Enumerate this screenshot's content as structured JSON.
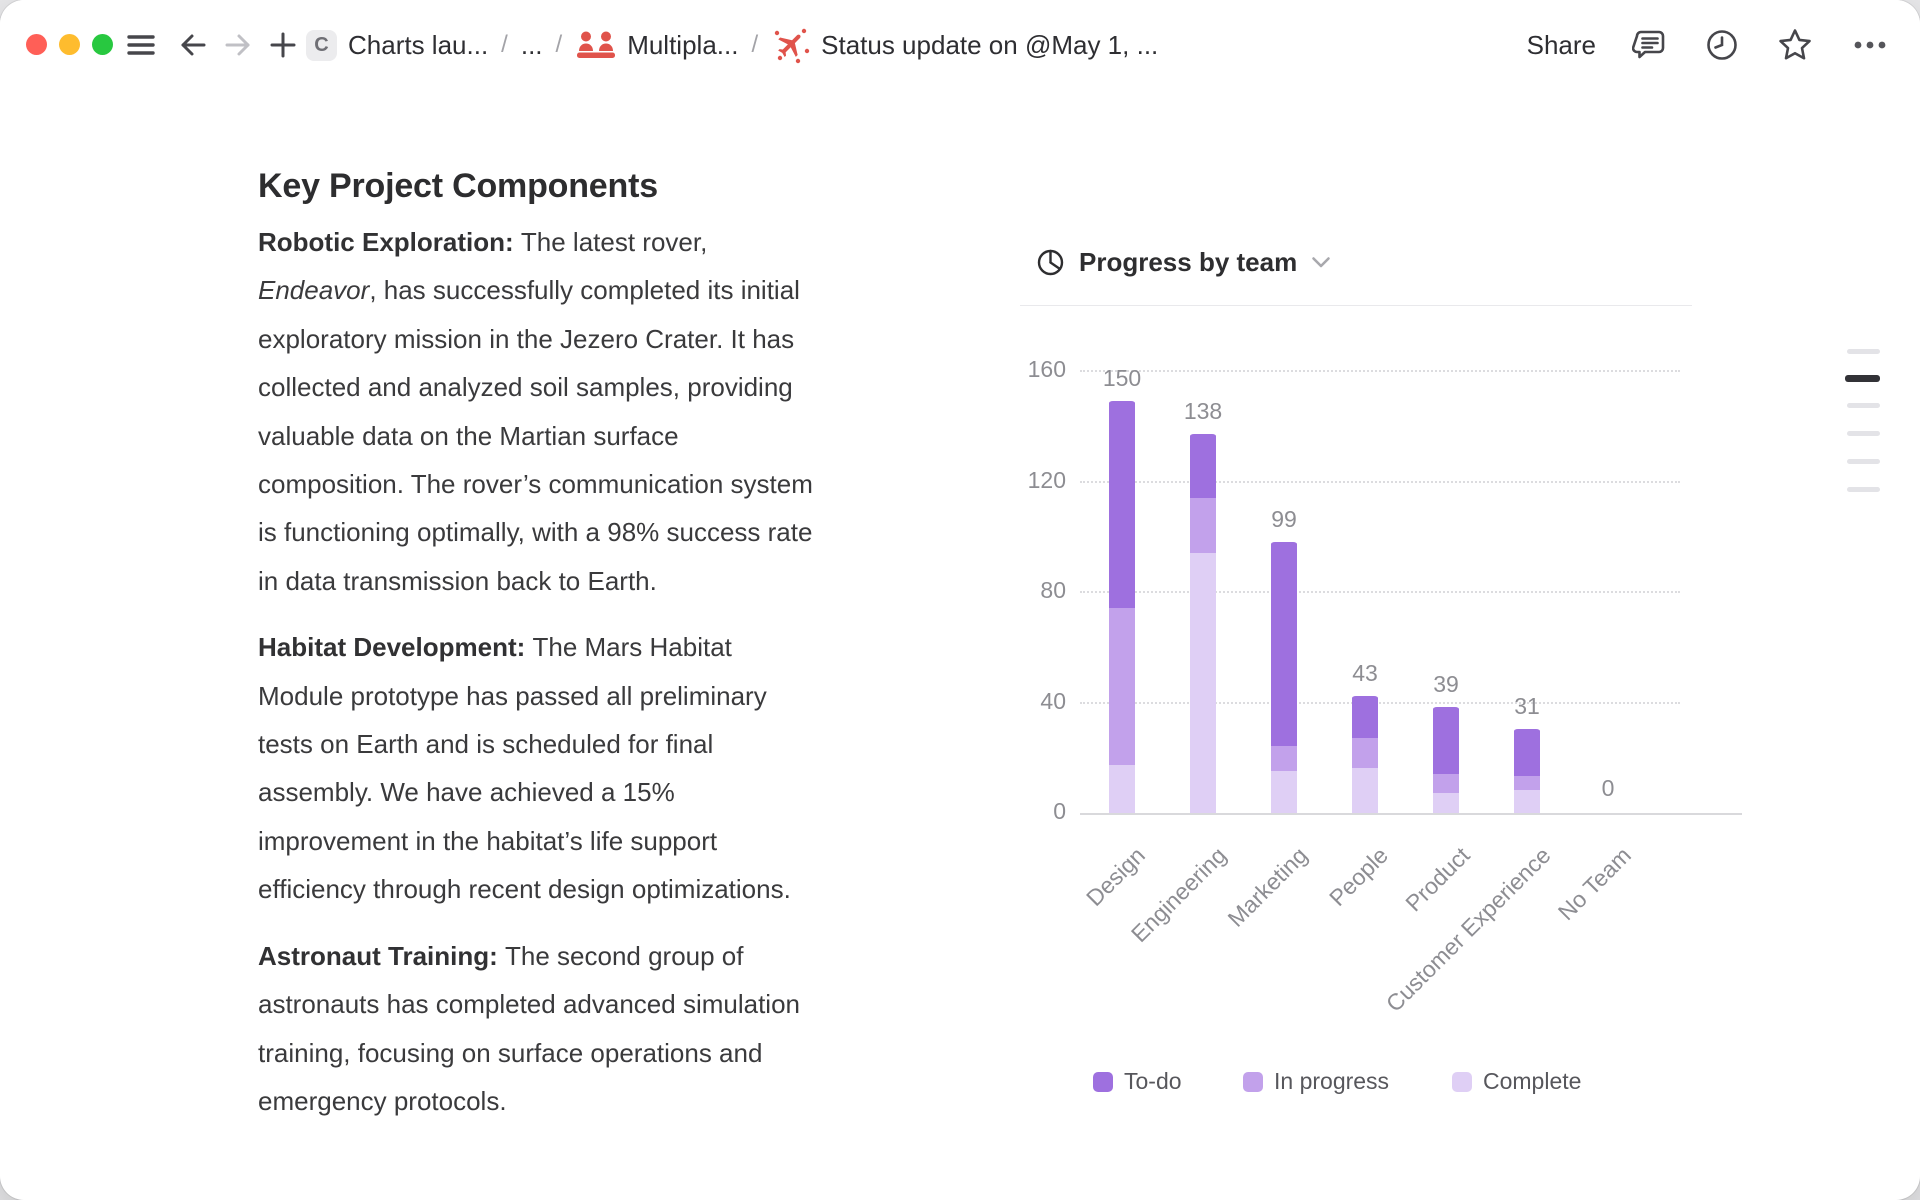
{
  "window": {
    "traffic_lights": [
      {
        "name": "close",
        "color": "#ff5f57"
      },
      {
        "name": "minimize",
        "color": "#febc2e"
      },
      {
        "name": "zoom",
        "color": "#28c840"
      }
    ]
  },
  "toolbar": {
    "favicon_letter": "C",
    "separator": "/",
    "breadcrumb": [
      {
        "label": "Charts lau...",
        "icon": null
      },
      {
        "label": "...",
        "icon": null
      },
      {
        "label": "Multipla...",
        "icon": "team-icon"
      },
      {
        "label": "Status update on @May 1, ...",
        "icon": "status-rocket-icon"
      }
    ],
    "share_label": "Share",
    "accent_red": "#e0534b"
  },
  "document": {
    "heading": "Key Project Components",
    "paragraphs": [
      {
        "segments": [
          {
            "t": "Robotic Exploration: ",
            "b": true
          },
          {
            "t": "The latest rover, "
          },
          {
            "t": "Endeavor",
            "i": true
          },
          {
            "t": ", has successfully completed its initial exploratory mission in the Jezero Crater. It has collected and analyzed soil samples, providing valuable data on the Martian surface composition. The rover’s communication system is functioning optimally, with a 98% success rate in data transmission back to Earth."
          }
        ]
      },
      {
        "segments": [
          {
            "t": "Habitat Development: ",
            "b": true
          },
          {
            "t": "The Mars Habitat Module prototype has passed all preliminary tests on Earth and is scheduled for final assembly. We have achieved a 15% improvement in the habitat’s life support efficiency through recent design optimizations."
          }
        ]
      },
      {
        "segments": [
          {
            "t": "Astronaut Training: ",
            "b": true
          },
          {
            "t": "The second group of astronauts has completed advanced simulation training, focusing on surface operations and emergency protocols."
          }
        ]
      }
    ]
  },
  "chart_data": {
    "type": "bar",
    "stacked": true,
    "title": "Progress by team",
    "categories": [
      "Design",
      "Engineering",
      "Marketing",
      "People",
      "Product",
      "Customer Experience",
      "No Team"
    ],
    "series": [
      {
        "name": "Complete",
        "color": "#dfcff5",
        "values": [
          18,
          95,
          16,
          17,
          8,
          9,
          0
        ]
      },
      {
        "name": "In progress",
        "color": "#c2a1eb",
        "values": [
          57,
          20,
          9,
          11,
          7,
          5,
          0
        ]
      },
      {
        "name": "To-do",
        "color": "#9e70df",
        "values": [
          75,
          23,
          74,
          15,
          24,
          17,
          0
        ]
      }
    ],
    "totals": [
      150,
      138,
      99,
      43,
      39,
      31,
      0
    ],
    "y_ticks": [
      0,
      40,
      80,
      120,
      160
    ],
    "ylim": [
      0,
      160
    ],
    "grid": "dotted-horizontal",
    "legend": {
      "position": "bottom",
      "items": [
        {
          "label": "To-do",
          "color": "#9e70df"
        },
        {
          "label": "In progress",
          "color": "#c2a1eb"
        },
        {
          "label": "Complete",
          "color": "#dfcff5"
        }
      ]
    }
  },
  "outline": {
    "marks_total": 6,
    "active_index": 1
  }
}
